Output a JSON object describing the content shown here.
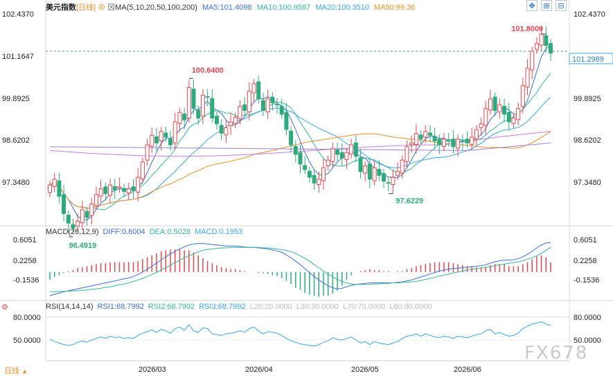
{
  "header": {
    "title": "美元指数",
    "period_tag": "[日线]",
    "ma_label": "MA(5,10,20,50,100,200)",
    "ma5": "MA5:101.4098",
    "ma10": "MA10:100.9587",
    "ma20": "MA20:100.3510",
    "ma50": "MA50:99.36"
  },
  "macd": {
    "label": "MACD(26,12,9)",
    "diff": "DIFF:0.6004",
    "dea": "DEA:0.5028",
    "macd": "MACD:0.1953"
  },
  "rsi": {
    "label": "RSI(14,14,14)",
    "rsi1": "RSI1:68.7992",
    "rsi2": "RSI2:68.7992",
    "rsi3": "RSI3:68.7992",
    "l20": "L20:20.0000",
    "l30": "L30:30.0000",
    "l70": "L70:70.0000",
    "l80": "L80:80.0000"
  },
  "footer": {
    "period": "日线",
    "watermark": "FX678"
  },
  "colors": {
    "up": "#e0484f",
    "down": "#2faa7c",
    "ma5": "#3a6fd8",
    "ma10": "#37b39a",
    "ma20": "#3aa3e6",
    "ma50": "#e5902a",
    "ma100": "#c77bd9",
    "ma200": "#9b7fd1",
    "macd_diff": "#3a6fd8",
    "macd_dea": "#37b39a",
    "rsi": "#3aa3e6"
  },
  "chart_data": {
    "type": "candlestick",
    "x_labels": [
      "2026/03",
      "2026/04",
      "2026/05",
      "2026/06"
    ],
    "y_ticks": [
      "102.4370",
      "101.1647",
      "99.8925",
      "98.6202",
      "97.3480"
    ],
    "ylim": [
      96.8,
      102.6
    ],
    "last_price": "101.2989",
    "annotations": [
      {
        "label": "101.8000",
        "value": 101.8,
        "color": "#e0484f"
      },
      {
        "label": "100.6400",
        "value": 100.64,
        "color": "#e0484f"
      },
      {
        "label": "96.4919",
        "value": 96.4919,
        "color": "#2faa7c"
      },
      {
        "label": "97.6229",
        "value": 97.6229,
        "color": "#2faa7c"
      }
    ],
    "closes": [
      97.85,
      98.0,
      97.55,
      97.1,
      96.85,
      96.72,
      96.9,
      97.2,
      97.0,
      97.35,
      97.6,
      97.75,
      97.62,
      97.85,
      97.72,
      97.8,
      97.68,
      97.75,
      97.7,
      98.05,
      98.45,
      98.9,
      99.15,
      98.95,
      99.25,
      99.1,
      98.9,
      99.5,
      99.75,
      99.55,
      100.4,
      99.85,
      99.6,
      100.2,
      100.15,
      99.6,
      99.45,
      99.2,
      99.35,
      99.5,
      99.62,
      99.9,
      99.8,
      100.3,
      100.5,
      100.1,
      99.8,
      100.1,
      100.0,
      99.95,
      99.7,
      99.3,
      98.9,
      98.65,
      98.4,
      98.25,
      98.05,
      97.9,
      98.0,
      98.3,
      98.5,
      98.8,
      98.65,
      98.55,
      98.7,
      98.9,
      98.6,
      98.2,
      98.35,
      98.0,
      98.3,
      98.1,
      97.95,
      97.9,
      98.05,
      98.2,
      98.5,
      98.85,
      98.95,
      99.2,
      99.05,
      99.25,
      99.15,
      99.0,
      98.9,
      99.05,
      99.0,
      98.85,
      99.05,
      99.0,
      98.95,
      99.1,
      99.3,
      99.45,
      99.85,
      100.1,
      99.8,
      99.95,
      99.7,
      99.5,
      99.6,
      99.85,
      100.45,
      100.9,
      101.35,
      101.55,
      101.8,
      101.5,
      101.3
    ],
    "macd": {
      "ylim": [
        -0.55,
        0.8
      ],
      "y_ticks": [
        "0.6051",
        "0.2258",
        "-0.1536"
      ],
      "diff": [
        -0.48,
        -0.45,
        -0.43,
        -0.4,
        -0.38,
        -0.36,
        -0.34,
        -0.32,
        -0.3,
        -0.28,
        -0.26,
        -0.24,
        -0.22,
        -0.2,
        -0.18,
        -0.16,
        -0.14,
        -0.12,
        -0.09,
        -0.05,
        0.0,
        0.06,
        0.12,
        0.18,
        0.25,
        0.31,
        0.37,
        0.42,
        0.47,
        0.51,
        0.55,
        0.57,
        0.58,
        0.58,
        0.57,
        0.56,
        0.55,
        0.54,
        0.53,
        0.53,
        0.53,
        0.52,
        0.51,
        0.5,
        0.5,
        0.49,
        0.48,
        0.47,
        0.45,
        0.43,
        0.4,
        0.35,
        0.29,
        0.22,
        0.15,
        0.07,
        -0.01,
        -0.09,
        -0.16,
        -0.22,
        -0.28,
        -0.32,
        -0.34,
        -0.33,
        -0.3,
        -0.27,
        -0.25,
        -0.24,
        -0.23,
        -0.22,
        -0.22,
        -0.22,
        -0.22,
        -0.22,
        -0.22,
        -0.21,
        -0.2,
        -0.18,
        -0.16,
        -0.13,
        -0.1,
        -0.07,
        -0.04,
        -0.01,
        0.02,
        0.04,
        0.06,
        0.07,
        0.08,
        0.09,
        0.1,
        0.11,
        0.12,
        0.13,
        0.15,
        0.18,
        0.21,
        0.23,
        0.24,
        0.24,
        0.25,
        0.27,
        0.31,
        0.36,
        0.42,
        0.49,
        0.55,
        0.59,
        0.6
      ],
      "dea": [
        -0.4,
        -0.4,
        -0.4,
        -0.39,
        -0.39,
        -0.38,
        -0.38,
        -0.37,
        -0.36,
        -0.35,
        -0.34,
        -0.33,
        -0.31,
        -0.3,
        -0.28,
        -0.26,
        -0.24,
        -0.22,
        -0.19,
        -0.16,
        -0.13,
        -0.09,
        -0.05,
        -0.01,
        0.04,
        0.09,
        0.14,
        0.19,
        0.24,
        0.29,
        0.33,
        0.37,
        0.41,
        0.44,
        0.46,
        0.47,
        0.48,
        0.49,
        0.49,
        0.5,
        0.5,
        0.5,
        0.5,
        0.5,
        0.5,
        0.5,
        0.49,
        0.49,
        0.48,
        0.47,
        0.46,
        0.44,
        0.41,
        0.38,
        0.33,
        0.28,
        0.22,
        0.15,
        0.09,
        0.02,
        -0.04,
        -0.1,
        -0.15,
        -0.19,
        -0.22,
        -0.24,
        -0.25,
        -0.25,
        -0.25,
        -0.25,
        -0.24,
        -0.24,
        -0.23,
        -0.23,
        -0.22,
        -0.22,
        -0.21,
        -0.21,
        -0.2,
        -0.19,
        -0.17,
        -0.15,
        -0.13,
        -0.11,
        -0.08,
        -0.06,
        -0.04,
        -0.02,
        0.0,
        0.02,
        0.04,
        0.05,
        0.07,
        0.08,
        0.1,
        0.11,
        0.13,
        0.15,
        0.16,
        0.18,
        0.19,
        0.21,
        0.23,
        0.26,
        0.29,
        0.33,
        0.38,
        0.44,
        0.5
      ]
    },
    "rsi": {
      "ylim": [
        30,
        90
      ],
      "y_ticks": [
        "80.0000",
        "50.0000"
      ],
      "values": [
        51,
        48,
        46,
        44,
        43,
        44,
        47,
        49,
        47,
        50,
        52,
        54,
        52,
        55,
        53,
        54,
        52,
        53,
        52,
        56,
        59,
        61,
        63,
        60,
        64,
        62,
        59,
        65,
        67,
        63,
        70,
        62,
        60,
        66,
        65,
        58,
        57,
        56,
        58,
        59,
        60,
        62,
        60,
        65,
        67,
        62,
        58,
        61,
        60,
        59,
        56,
        52,
        49,
        47,
        45,
        44,
        43,
        42,
        44,
        47,
        49,
        53,
        51,
        50,
        52,
        54,
        50,
        46,
        48,
        44,
        48,
        46,
        45,
        44,
        46,
        48,
        52,
        55,
        56,
        58,
        55,
        58,
        56,
        54,
        53,
        55,
        54,
        52,
        55,
        54,
        53,
        55,
        57,
        58,
        62,
        64,
        58,
        60,
        57,
        55,
        56,
        59,
        65,
        68,
        71,
        72,
        74,
        71,
        69
      ]
    }
  }
}
